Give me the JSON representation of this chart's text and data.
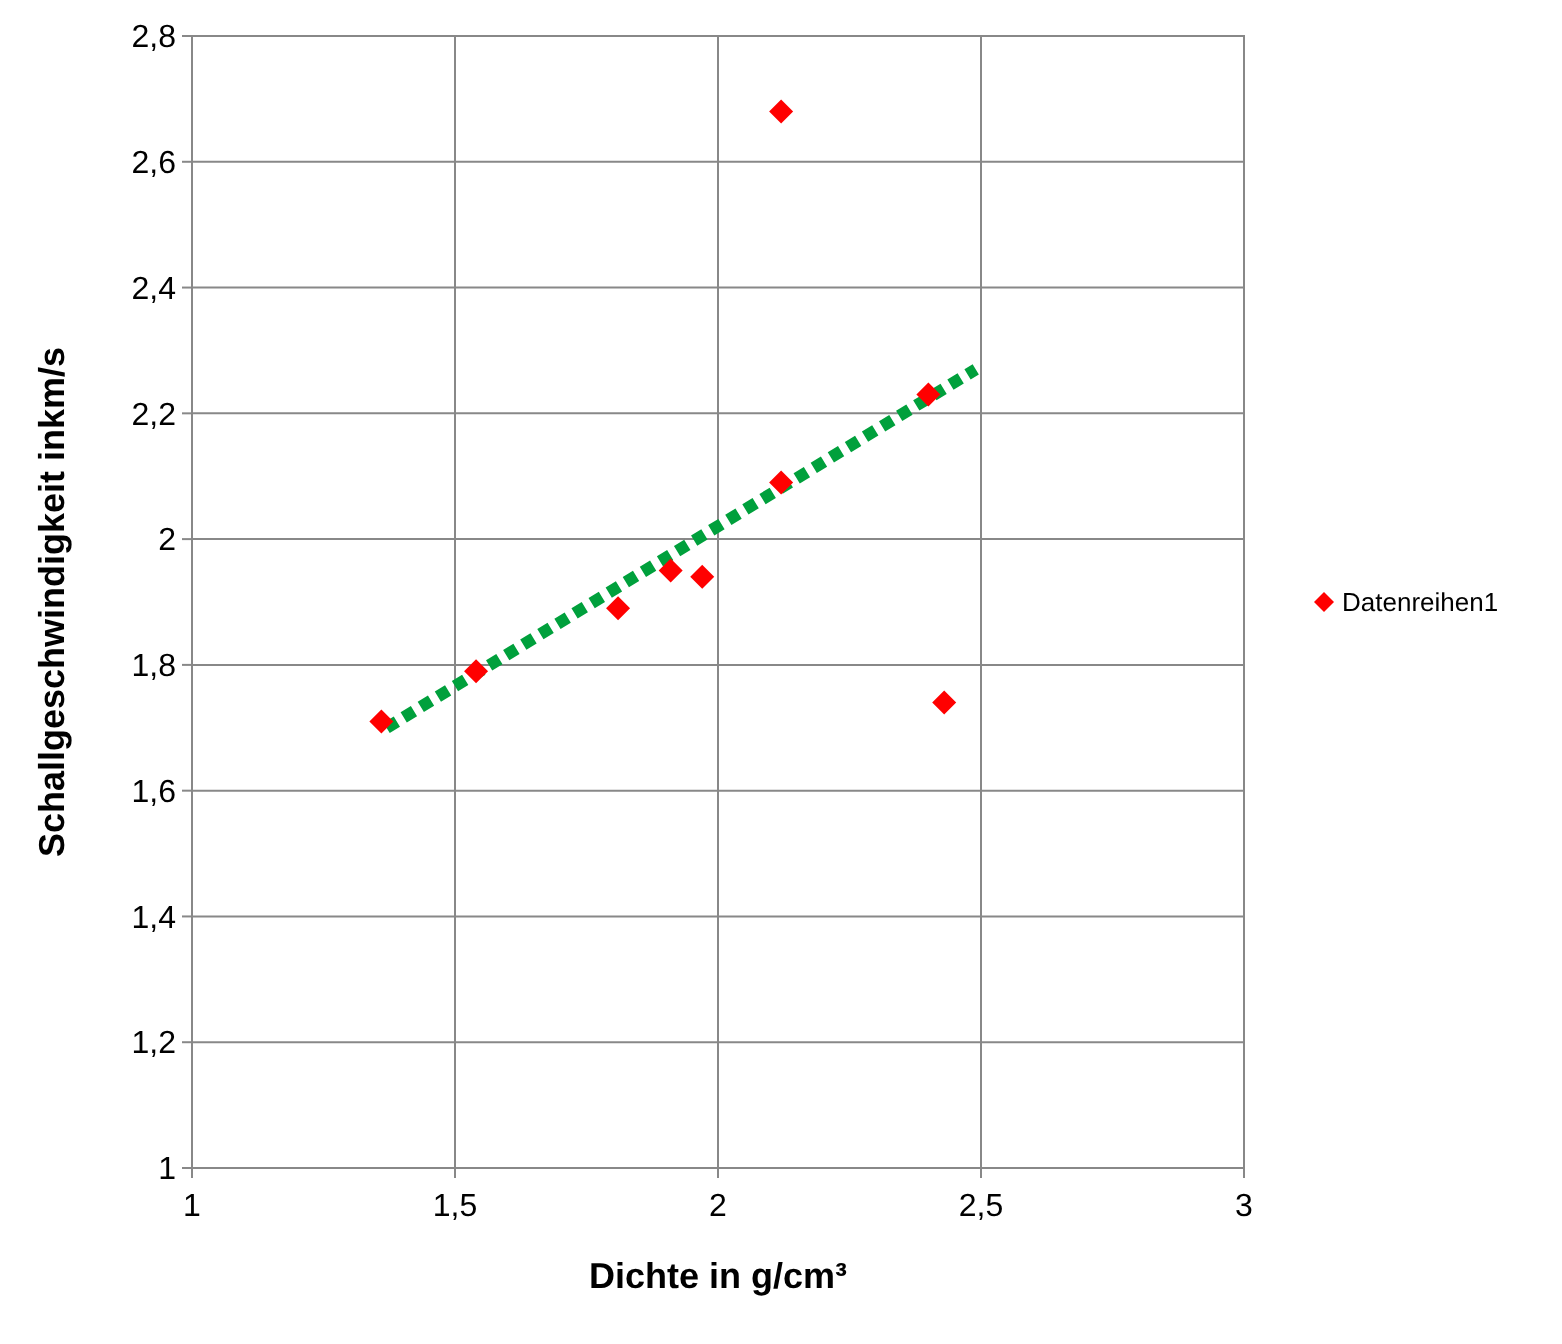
{
  "chart_data": {
    "type": "scatter",
    "xlabel": "Dichte in g/cm³",
    "ylabel": "Schallgeschwindigkeit inkm/s",
    "xlim": [
      1,
      3
    ],
    "xticks": [
      1,
      {
        "value": 1.5,
        "label": "1,5"
      },
      2,
      {
        "value": 2.5,
        "label": "2,5"
      },
      3
    ],
    "ylim": [
      1,
      2.8
    ],
    "yticks": [
      1,
      {
        "value": 1.2,
        "label": "1,2"
      },
      {
        "value": 1.4,
        "label": "1,4"
      },
      {
        "value": 1.6,
        "label": "1,6"
      },
      {
        "value": 1.8,
        "label": "1,8"
      },
      2,
      {
        "value": 2.2,
        "label": "2,2"
      },
      {
        "value": 2.4,
        "label": "2,4"
      },
      {
        "value": 2.6,
        "label": "2,6"
      },
      {
        "value": 2.8,
        "label": "2,8"
      }
    ],
    "grid": true,
    "legend": "right",
    "series": [
      {
        "name": "Datenreihen1",
        "marker": "diamond",
        "color": "#ff0000",
        "x": [
          1.36,
          1.54,
          1.81,
          1.91,
          1.97,
          2.12,
          2.12,
          2.4,
          2.43
        ],
        "values": [
          1.71,
          1.79,
          1.89,
          1.95,
          1.94,
          2.68,
          2.09,
          2.23,
          1.74
        ]
      },
      {
        "type": "line",
        "color": "#00a03c",
        "line_style": "dotted",
        "x": [
          1.37,
          2.49
        ],
        "values": [
          1.7,
          2.27
        ]
      }
    ]
  }
}
